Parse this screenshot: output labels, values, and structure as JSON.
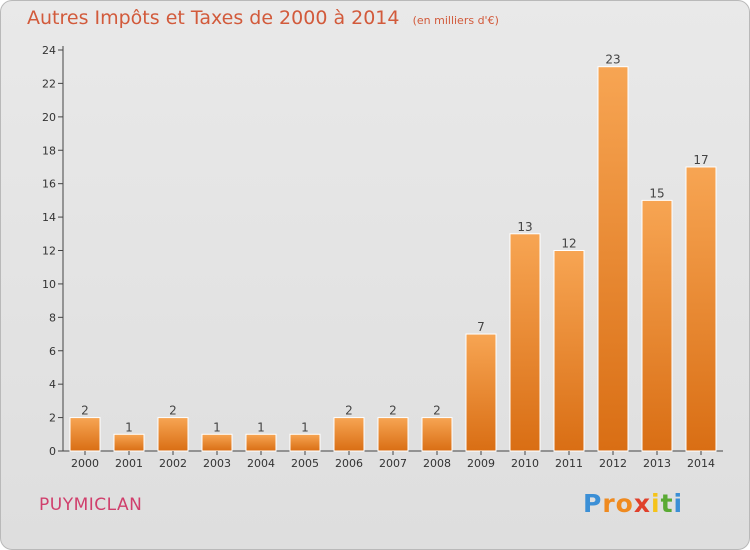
{
  "chart_data": {
    "type": "bar",
    "title": "Autres Impôts et Taxes de 2000 à 2014",
    "unit": "(en milliers d'€)",
    "categories": [
      "2000",
      "2001",
      "2002",
      "2003",
      "2004",
      "2005",
      "2006",
      "2007",
      "2008",
      "2009",
      "2010",
      "2011",
      "2012",
      "2013",
      "2014"
    ],
    "values": [
      2,
      1,
      2,
      1,
      1,
      1,
      2,
      2,
      2,
      7,
      13,
      12,
      23,
      15,
      17
    ],
    "value_labels": [
      "2",
      "1",
      "2",
      "1",
      "1",
      "1",
      "2",
      "2",
      "2",
      "7",
      "13",
      "12",
      "23",
      "15",
      "17"
    ],
    "ylim": [
      0,
      24
    ],
    "yticks": [
      0,
      2,
      4,
      6,
      8,
      10,
      12,
      14,
      16,
      18,
      20,
      22,
      24
    ],
    "grid": false,
    "colors": {
      "bar_top": "#f7a553",
      "bar_bottom": "#d96e14",
      "title": "#d25a3b",
      "axis": "#444444"
    }
  },
  "footer": {
    "commune": "PUYMICLAN",
    "logo_letters": [
      "P",
      "r",
      "o",
      "x",
      "i",
      "t",
      "i"
    ],
    "logo_colors": [
      "#3b8fd6",
      "#ef8a1f",
      "#ef8a1f",
      "#e0402b",
      "#f5c31a",
      "#5aaa34",
      "#3b8fd6"
    ]
  }
}
